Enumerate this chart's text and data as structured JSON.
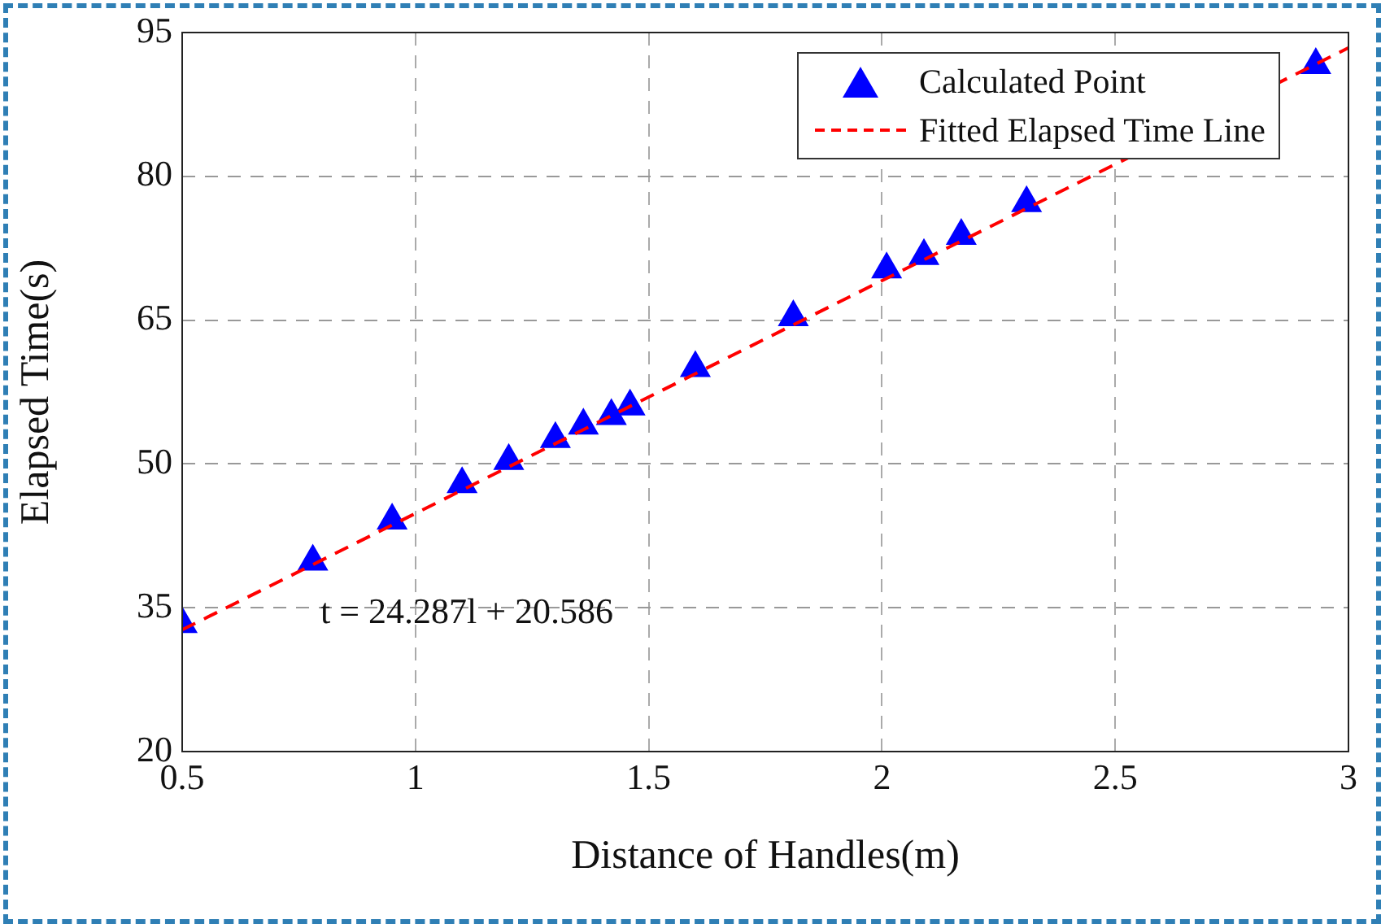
{
  "chart_data": {
    "type": "scatter",
    "xlabel": "Distance of Handles(m)",
    "ylabel": "Elapsed Time(s)",
    "xlim": [
      0.5,
      3
    ],
    "xticks": [
      0.5,
      1,
      1.5,
      2,
      2.5,
      3
    ],
    "ylim": [
      20,
      95
    ],
    "yticks": [
      20,
      35,
      50,
      65,
      80,
      95
    ],
    "grid": true,
    "legend": "top right",
    "annotations": [
      "t = 24.287l + 20.586"
    ],
    "series": [
      {
        "name": "Calculated Point",
        "type": "scatter",
        "color": "#0000ff",
        "marker": "triangle",
        "x": [
          0.5,
          0.78,
          0.95,
          1.1,
          1.2,
          1.3,
          1.36,
          1.42,
          1.46,
          1.6,
          1.81,
          2.01,
          2.09,
          2.17,
          2.31,
          2.93
        ],
        "values": [
          33.3,
          39.8,
          44.1,
          47.9,
          50.3,
          52.6,
          54,
          55,
          56,
          60,
          65.3,
          70.3,
          71.7,
          73.8,
          77.2,
          91.6
        ]
      },
      {
        "name": "Fitted Elapsed Time Line",
        "type": "line",
        "color": "#ff0000",
        "marker": "none",
        "line_style": "dashed",
        "x": [
          0.5,
          3
        ],
        "values": [
          32.7,
          93.4
        ]
      }
    ]
  }
}
